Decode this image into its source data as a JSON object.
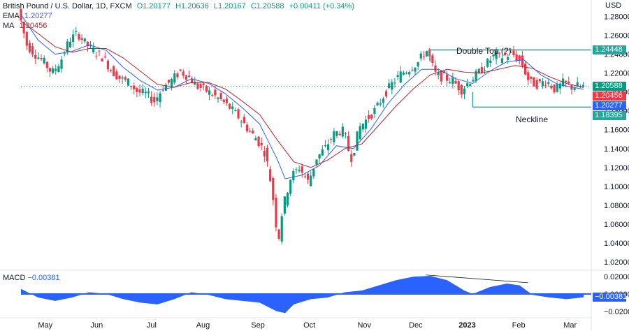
{
  "legend": {
    "symbol": "British Pound / U.S. Dollar, 1D, FXCM",
    "open": "O1.20177",
    "high": "H1.20636",
    "low": "L1.20167",
    "close": "C1.20588",
    "change": "+0.00411 (+0.34%)",
    "ema_label": "EMA",
    "ema_value": "1.20277",
    "ma_label": "MA",
    "ma_value": "1.20456"
  },
  "price_axis": {
    "currency": "USD",
    "ticks": [
      "1.28000",
      "1.26000",
      "1.24000",
      "1.22000",
      "1.20000",
      "1.18000",
      "1.16000",
      "1.14000",
      "1.12000",
      "1.10000",
      "1.08000",
      "1.06000",
      "1.04000",
      "1.02000"
    ],
    "tags": [
      {
        "label": "1.24448",
        "color": "#26a69a",
        "value": 1.24448
      },
      {
        "label": "1.20588",
        "color": "#089981",
        "value": 1.20588
      },
      {
        "label": "1.20456",
        "color": "#f23645",
        "value": 1.20456
      },
      {
        "label": "1.20277",
        "color": "#2962ff",
        "value": 1.20277
      },
      {
        "label": "1.18395",
        "color": "#26a69a",
        "value": 1.18395
      }
    ]
  },
  "annotations": {
    "double_top": "Double Top (?)",
    "neckline": "Neckline"
  },
  "macd": {
    "label": "MACD",
    "value": "−0.00381",
    "ticks": [
      "0.02000",
      "0.00000",
      "−0.02000"
    ],
    "tag": "−0.00381"
  },
  "time_axis": {
    "labels": [
      "May",
      "Jun",
      "Jul",
      "Aug",
      "Sep",
      "Oct",
      "Nov",
      "Dec",
      "2023",
      "Feb",
      "Mar"
    ]
  },
  "colors": {
    "up": "#089981",
    "down": "#f23645",
    "ema": "#2962ff",
    "ma": "#b22833",
    "annotation_line": "#26a69a",
    "macd_fill": "#2962ff"
  },
  "chart_data": {
    "type": "line",
    "title": "British Pound / U.S. Dollar, 1D, FXCM",
    "x": [
      "May",
      "Jun",
      "Jul",
      "Aug",
      "Sep",
      "Oct",
      "Nov",
      "Dec",
      "2023",
      "Feb",
      "Mar"
    ],
    "ylim": [
      1.02,
      1.29
    ],
    "ylabel": "",
    "xlabel": "",
    "grid": false,
    "price_path": [
      [
        0,
        1.288
      ],
      [
        10,
        1.25
      ],
      [
        20,
        1.24
      ],
      [
        30,
        1.232
      ],
      [
        40,
        1.22
      ],
      [
        50,
        1.233
      ],
      [
        60,
        1.255
      ],
      [
        70,
        1.262
      ],
      [
        80,
        1.25
      ],
      [
        90,
        1.243
      ],
      [
        100,
        1.236
      ],
      [
        110,
        1.222
      ],
      [
        120,
        1.214
      ],
      [
        130,
        1.21
      ],
      [
        140,
        1.2
      ],
      [
        150,
        1.198
      ],
      [
        160,
        1.19
      ],
      [
        170,
        1.205
      ],
      [
        180,
        1.212
      ],
      [
        190,
        1.222
      ],
      [
        200,
        1.216
      ],
      [
        210,
        1.206
      ],
      [
        220,
        1.202
      ],
      [
        230,
        1.196
      ],
      [
        240,
        1.19
      ],
      [
        250,
        1.182
      ],
      [
        260,
        1.172
      ],
      [
        270,
        1.16
      ],
      [
        280,
        1.15
      ],
      [
        290,
        1.135
      ],
      [
        295,
        1.112
      ],
      [
        300,
        1.082
      ],
      [
        305,
        1.04
      ],
      [
        310,
        1.075
      ],
      [
        320,
        1.11
      ],
      [
        330,
        1.12
      ],
      [
        340,
        1.105
      ],
      [
        345,
        1.115
      ],
      [
        350,
        1.13
      ],
      [
        360,
        1.14
      ],
      [
        370,
        1.155
      ],
      [
        380,
        1.16
      ],
      [
        385,
        1.15
      ],
      [
        390,
        1.128
      ],
      [
        395,
        1.142
      ],
      [
        400,
        1.162
      ],
      [
        410,
        1.172
      ],
      [
        420,
        1.182
      ],
      [
        430,
        1.198
      ],
      [
        440,
        1.21
      ],
      [
        450,
        1.22
      ],
      [
        460,
        1.225
      ],
      [
        470,
        1.232
      ],
      [
        475,
        1.24
      ],
      [
        480,
        1.244
      ],
      [
        485,
        1.23
      ],
      [
        490,
        1.218
      ],
      [
        500,
        1.215
      ],
      [
        510,
        1.212
      ],
      [
        520,
        1.202
      ],
      [
        530,
        1.212
      ],
      [
        540,
        1.22
      ],
      [
        550,
        1.23
      ],
      [
        560,
        1.24
      ],
      [
        565,
        1.236
      ],
      [
        570,
        1.238
      ],
      [
        580,
        1.24
      ],
      [
        590,
        1.232
      ],
      [
        600,
        1.21
      ],
      [
        610,
        1.208
      ],
      [
        620,
        1.212
      ],
      [
        630,
        1.202
      ],
      [
        640,
        1.21
      ],
      [
        650,
        1.205
      ],
      [
        655,
        1.206
      ],
      [
        660,
        1.2059
      ]
    ],
    "series": [
      {
        "name": "EMA",
        "values": [
          [
            0,
            1.282
          ],
          [
            20,
            1.255
          ],
          [
            40,
            1.24
          ],
          [
            60,
            1.243
          ],
          [
            80,
            1.25
          ],
          [
            100,
            1.244
          ],
          [
            120,
            1.226
          ],
          [
            140,
            1.212
          ],
          [
            160,
            1.202
          ],
          [
            180,
            1.205
          ],
          [
            200,
            1.214
          ],
          [
            220,
            1.209
          ],
          [
            240,
            1.198
          ],
          [
            260,
            1.183
          ],
          [
            280,
            1.166
          ],
          [
            300,
            1.13
          ],
          [
            310,
            1.108
          ],
          [
            330,
            1.112
          ],
          [
            350,
            1.122
          ],
          [
            370,
            1.143
          ],
          [
            390,
            1.14
          ],
          [
            410,
            1.16
          ],
          [
            430,
            1.187
          ],
          [
            450,
            1.208
          ],
          [
            470,
            1.224
          ],
          [
            490,
            1.224
          ],
          [
            510,
            1.214
          ],
          [
            530,
            1.209
          ],
          [
            550,
            1.222
          ],
          [
            570,
            1.232
          ],
          [
            590,
            1.234
          ],
          [
            610,
            1.218
          ],
          [
            630,
            1.208
          ],
          [
            660,
            1.2028
          ]
        ]
      },
      {
        "name": "MA",
        "values": [
          [
            0,
            1.275
          ],
          [
            20,
            1.262
          ],
          [
            40,
            1.248
          ],
          [
            60,
            1.242
          ],
          [
            80,
            1.246
          ],
          [
            100,
            1.246
          ],
          [
            120,
            1.236
          ],
          [
            140,
            1.222
          ],
          [
            160,
            1.208
          ],
          [
            180,
            1.205
          ],
          [
            200,
            1.21
          ],
          [
            220,
            1.21
          ],
          [
            240,
            1.203
          ],
          [
            260,
            1.19
          ],
          [
            280,
            1.176
          ],
          [
            300,
            1.15
          ],
          [
            320,
            1.126
          ],
          [
            340,
            1.12
          ],
          [
            360,
            1.128
          ],
          [
            380,
            1.14
          ],
          [
            400,
            1.145
          ],
          [
            420,
            1.165
          ],
          [
            440,
            1.185
          ],
          [
            460,
            1.203
          ],
          [
            480,
            1.218
          ],
          [
            500,
            1.224
          ],
          [
            520,
            1.221
          ],
          [
            540,
            1.22
          ],
          [
            560,
            1.224
          ],
          [
            580,
            1.228
          ],
          [
            600,
            1.225
          ],
          [
            620,
            1.216
          ],
          [
            640,
            1.209
          ],
          [
            660,
            1.2046
          ]
        ]
      }
    ],
    "levels": [
      {
        "name": "Double Top (?)",
        "value": 1.24448
      },
      {
        "name": "Neckline",
        "value": 1.18395
      }
    ],
    "macd": [
      [
        0,
        0.006
      ],
      [
        20,
        -0.004
      ],
      [
        40,
        -0.008
      ],
      [
        60,
        -0.004
      ],
      [
        80,
        0.002
      ],
      [
        100,
        0.0
      ],
      [
        120,
        -0.006
      ],
      [
        140,
        -0.01
      ],
      [
        160,
        -0.012
      ],
      [
        180,
        -0.006
      ],
      [
        200,
        0.002
      ],
      [
        220,
        -0.001
      ],
      [
        240,
        -0.006
      ],
      [
        260,
        -0.008
      ],
      [
        280,
        -0.01
      ],
      [
        300,
        -0.02
      ],
      [
        310,
        -0.022
      ],
      [
        320,
        -0.012
      ],
      [
        340,
        -0.006
      ],
      [
        360,
        -0.004
      ],
      [
        380,
        0.002
      ],
      [
        400,
        0.004
      ],
      [
        420,
        0.01
      ],
      [
        440,
        0.016
      ],
      [
        460,
        0.02
      ],
      [
        480,
        0.021
      ],
      [
        500,
        0.016
      ],
      [
        520,
        0.004
      ],
      [
        530,
        0.0
      ],
      [
        550,
        0.008
      ],
      [
        570,
        0.012
      ],
      [
        585,
        0.01
      ],
      [
        600,
        -0.001
      ],
      [
        620,
        -0.004
      ],
      [
        640,
        -0.006
      ],
      [
        660,
        -0.0038
      ]
    ],
    "macd_ylim": [
      -0.025,
      0.025
    ]
  }
}
